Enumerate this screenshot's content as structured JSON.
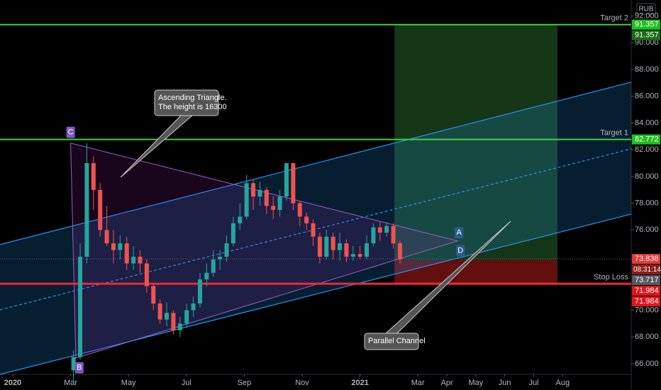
{
  "chart_data": {
    "type": "candlestick",
    "currency": "RUB",
    "x": [
      2.1,
      2.33,
      2.56,
      2.79,
      3.02,
      3.25,
      3.48,
      3.71,
      3.94,
      4.17,
      4.4,
      4.63,
      4.86,
      5.09,
      5.32,
      5.55,
      5.78,
      6.01,
      6.24,
      6.47,
      6.7,
      6.93,
      7.16,
      7.39,
      7.62,
      7.85,
      8.08,
      8.31,
      8.54,
      8.77,
      9.0,
      9.23,
      9.46,
      9.69,
      9.92,
      10.15,
      10.38,
      10.61,
      10.84,
      11.07,
      11.3,
      11.53,
      11.76,
      12.0,
      12.23,
      12.46,
      12.69,
      12.92,
      13.15,
      13.38
    ],
    "open": [
      65.5,
      66.5,
      74,
      81,
      79,
      76,
      75,
      74.5,
      75,
      73.5,
      74,
      73.5,
      71.8,
      70.5,
      69.3,
      69.8,
      68.5,
      69,
      70,
      70.5,
      72.3,
      72.8,
      73.8,
      74,
      75,
      76.5,
      77,
      79.5,
      78.5,
      79,
      77.8,
      77.5,
      78.5,
      81,
      78,
      77,
      76.5,
      75.5,
      74,
      75.5,
      74.5,
      75,
      74,
      74.2,
      74,
      75,
      76.2,
      75.8,
      76.3,
      75
    ],
    "high": [
      67,
      75,
      82.5,
      81.5,
      79.5,
      77.8,
      76,
      75.6,
      75.5,
      74.8,
      74.5,
      73.8,
      72,
      70.8,
      70.6,
      70,
      69.5,
      70.5,
      71,
      72.8,
      73.5,
      74.5,
      74.5,
      75.6,
      77,
      78,
      80.1,
      79.8,
      79.6,
      79.2,
      78.5,
      79,
      81,
      81,
      78.2,
      77.3,
      76.8,
      75.8,
      76,
      75.8,
      75.8,
      75.3,
      74.8,
      74.8,
      75.6,
      76.5,
      76.6,
      76.6,
      76.5,
      75.2
    ],
    "low": [
      64.5,
      66.3,
      73.5,
      77.5,
      75.5,
      74.8,
      73.5,
      73.8,
      73,
      73,
      72.8,
      71.3,
      70,
      69,
      68.8,
      68.2,
      68,
      68.7,
      69.5,
      70.2,
      71.8,
      72.5,
      73,
      73.6,
      74.8,
      76,
      76.8,
      77.5,
      77.8,
      77.2,
      76.8,
      77,
      78.2,
      77.5,
      76.3,
      76,
      74.8,
      73.5,
      73.8,
      73.8,
      73.7,
      73.6,
      73.7,
      73.8,
      73.8,
      74.8,
      75.2,
      75.5,
      74.6,
      73.5
    ],
    "close": [
      66.5,
      74,
      81,
      79,
      76,
      75,
      74.5,
      75,
      73.5,
      74,
      73.5,
      71.8,
      70.5,
      69.3,
      69.8,
      68.5,
      69,
      70,
      70.5,
      72.3,
      72.8,
      73.8,
      74,
      75,
      76.5,
      77,
      79.5,
      78.5,
      79,
      77.8,
      77.5,
      78.5,
      81,
      78,
      77,
      76.5,
      75.5,
      74,
      75.5,
      74.5,
      75,
      74,
      74.2,
      74,
      75,
      76.2,
      75.8,
      76.3,
      75,
      73.8
    ],
    "up_color": "#26a69a",
    "down_color": "#ef5350",
    "xlim": [
      -0.44,
      21.37
    ],
    "ylim": [
      65.2,
      93.2
    ],
    "xticks": [
      {
        "value": 0,
        "label": "2020"
      },
      {
        "value": 2,
        "label": "Mar"
      },
      {
        "value": 4,
        "label": "May"
      },
      {
        "value": 6,
        "label": "Jul"
      },
      {
        "value": 8,
        "label": "Sep"
      },
      {
        "value": 10,
        "label": "Nov"
      },
      {
        "value": 12,
        "label": "2021"
      },
      {
        "value": 14,
        "label": "Mar"
      },
      {
        "value": 15,
        "label": "Apr"
      },
      {
        "value": 16,
        "label": "May"
      },
      {
        "value": 17,
        "label": "Jun"
      },
      {
        "value": 18,
        "label": "Jul"
      },
      {
        "value": 19,
        "label": "Aug"
      }
    ],
    "yticks": [
      {
        "value": 66,
        "label": "66.000"
      },
      {
        "value": 68,
        "label": "68.000"
      },
      {
        "value": 70,
        "label": "70.000"
      },
      {
        "value": 76,
        "label": "76.000"
      },
      {
        "value": 78,
        "label": "78.000"
      },
      {
        "value": 80,
        "label": "80.000"
      },
      {
        "value": 82,
        "label": "82.000"
      },
      {
        "value": 84,
        "label": "84.000"
      },
      {
        "value": 86,
        "label": "86.000"
      },
      {
        "value": 88,
        "label": "88.000"
      },
      {
        "value": 90,
        "label": "90.000"
      },
      {
        "value": 92,
        "label": "92.000"
      }
    ],
    "levels": [
      {
        "name": "Target 2",
        "value": 91.357,
        "color": "#3fd13f"
      },
      {
        "name": "Target 1",
        "value": 82.772,
        "color": "#3fd13f"
      },
      {
        "name": "Stop Loss",
        "value": 71.984,
        "color": "#f2263a"
      }
    ],
    "price_tags": [
      {
        "value": 91.357,
        "label": "91.357",
        "color": "#1fbf1f"
      },
      {
        "value": 91.357,
        "label": "91.357",
        "color": "#1a6b1a"
      },
      {
        "value": 82.772,
        "label": "82.772",
        "color": "#1fbf1f"
      },
      {
        "value": 73.838,
        "label": "73.838",
        "color": "#e53935"
      },
      {
        "value": 73.717,
        "label": "73.717",
        "color": "#555a60"
      },
      {
        "value": 71.984,
        "label": "71.984",
        "color": "#e0161c"
      },
      {
        "value": 71.984,
        "label": "71.984",
        "color": "#e0161c"
      }
    ],
    "countdown": "08:31:14",
    "current_price": 73.838,
    "position": {
      "entry": 73.75,
      "target": 91.357,
      "stop": 71.984,
      "start": 13.19,
      "end": 18.82
    },
    "channel": {
      "upper": [
        [
          -0.44,
          74.91
        ],
        [
          21.37,
          87.06
        ]
      ],
      "middle": [
        [
          -0.44,
          70.03
        ],
        [
          21.37,
          82.07
        ]
      ],
      "lower": [
        [
          -0.44,
          65.2
        ],
        [
          21.37,
          77.19
        ]
      ]
    },
    "triangle": {
      "vertices": [
        [
          2.0,
          82.5
        ],
        [
          2.18,
          66.42
        ],
        [
          15.37,
          75.18
        ]
      ]
    },
    "point_labels": [
      {
        "label": "C",
        "x": 2.0,
        "y": 83.3
      },
      {
        "label": "B",
        "x": 2.3,
        "y": 65.7
      },
      {
        "label": "A",
        "x": 15.42,
        "y": 75.8
      },
      {
        "label": "D",
        "x": 15.47,
        "y": 74.45
      }
    ],
    "annotations": [
      {
        "lines": [
          "Ascending Triangle.",
          "The height is 16300"
        ]
      },
      {
        "lines": [
          "Parallel Channel"
        ]
      }
    ]
  }
}
